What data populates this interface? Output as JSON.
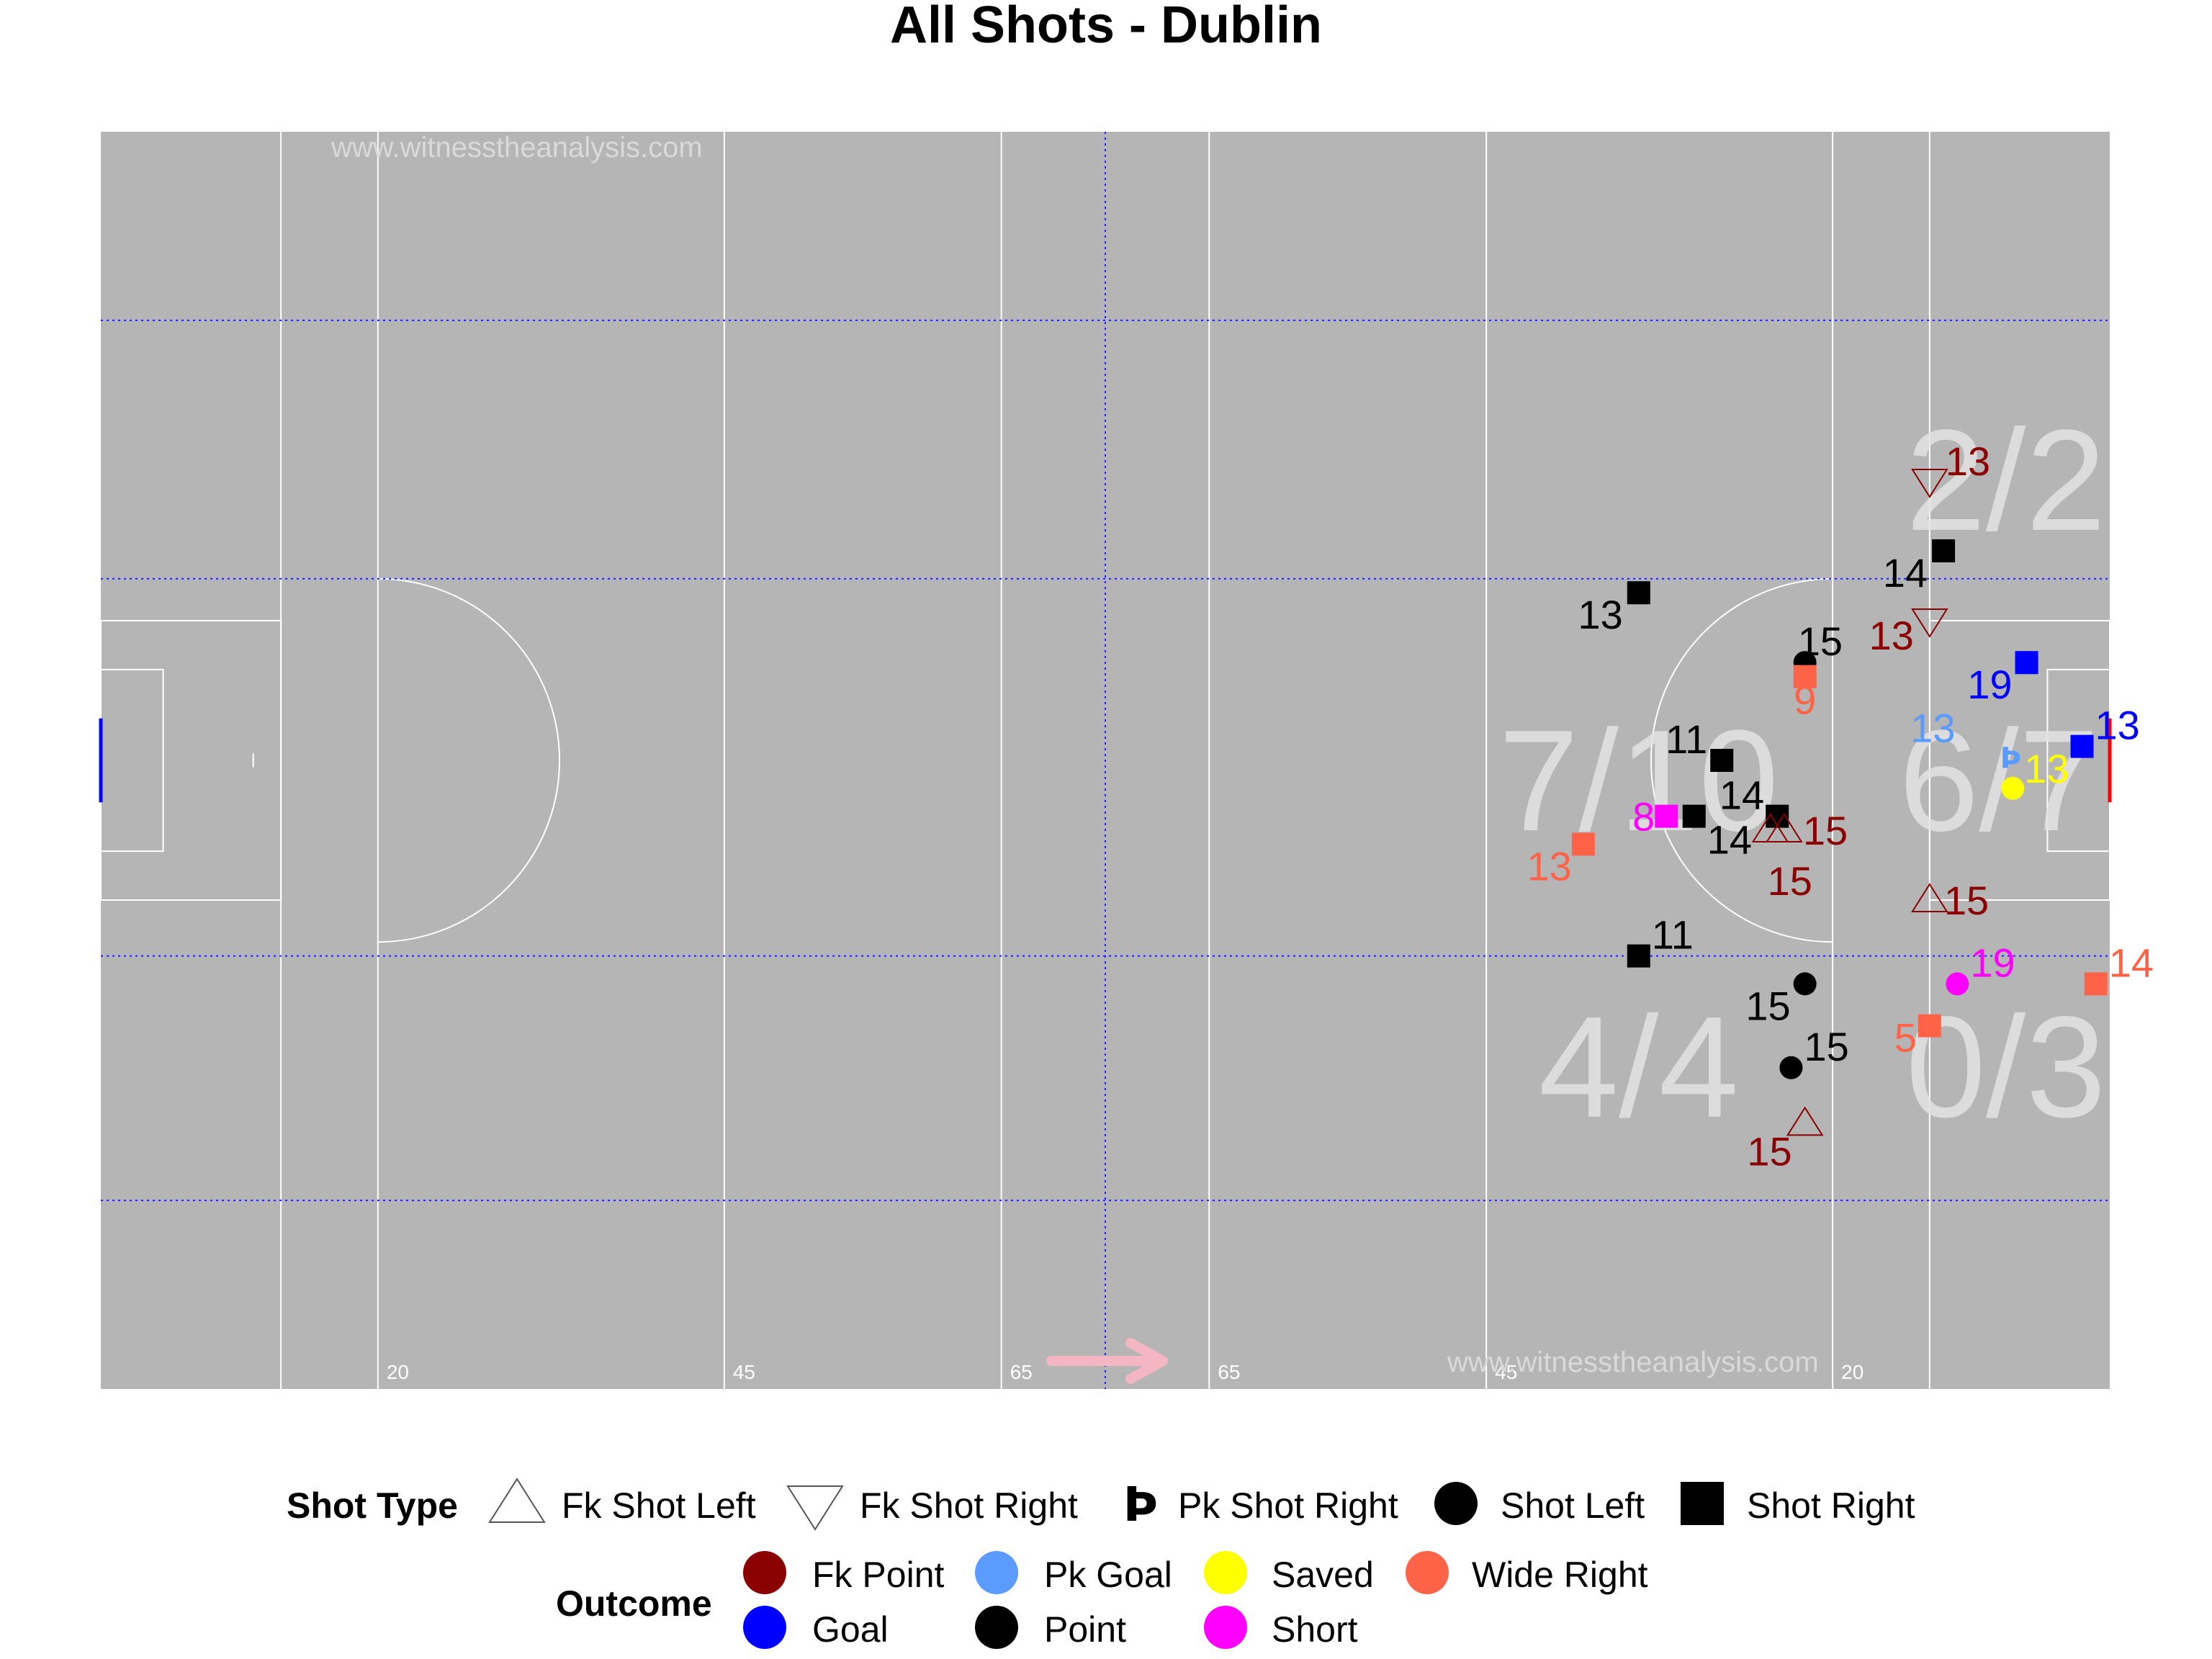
{
  "title": "All Shots - Dublin",
  "watermarks": [
    "www.witnesstheanalysis.com",
    "www.witnesstheanalysis.com"
  ],
  "yard_labels": [
    "20",
    "45",
    "65",
    "65",
    "45",
    "20"
  ],
  "zone_stats": {
    "top_right": "2/2",
    "middle_left": "7/10",
    "middle_right": "6/7",
    "bottom_left": "4/4",
    "bottom_right": "0/3"
  },
  "legend": {
    "shot_type_title": "Shot Type",
    "shot_types": [
      {
        "label": "Fk Shot Left",
        "shape": "triangle-up"
      },
      {
        "label": "Fk Shot Right",
        "shape": "triangle-down"
      },
      {
        "label": "Pk Shot Right",
        "shape": "thorn"
      },
      {
        "label": "Shot Left",
        "shape": "circle"
      },
      {
        "label": "Shot Right",
        "shape": "square"
      }
    ],
    "outcome_title": "Outcome",
    "outcomes": [
      {
        "label": "Fk Point",
        "color": "#8B0000"
      },
      {
        "label": "Goal",
        "color": "#0000FF"
      },
      {
        "label": "Pk Goal",
        "color": "#5B9BFF"
      },
      {
        "label": "Point",
        "color": "#000000"
      },
      {
        "label": "Saved",
        "color": "#FFFF00"
      },
      {
        "label": "Short",
        "color": "#FF00FF"
      },
      {
        "label": "Wide Right",
        "color": "#FF6347"
      }
    ]
  },
  "chart_data": {
    "type": "scatter",
    "title": "All Shots - Dublin",
    "x_axis": "pitch length in metres (0-145, attacking right)",
    "y_axis": "pitch width in metres (0-90)",
    "xlim": [
      0,
      145
    ],
    "ylim": [
      0,
      90
    ],
    "points": [
      {
        "x": 132,
        "y": 65,
        "type": "Fk Shot Right",
        "outcome": "Fk Point",
        "label": "13"
      },
      {
        "x": 132,
        "y": 55,
        "type": "Fk Shot Right",
        "outcome": "Fk Point",
        "label": "13"
      },
      {
        "x": 133,
        "y": 60,
        "type": "Shot Right",
        "outcome": "Point",
        "label": "14"
      },
      {
        "x": 111,
        "y": 57,
        "type": "Shot Right",
        "outcome": "Point",
        "label": "13"
      },
      {
        "x": 123,
        "y": 52,
        "type": "Shot Left",
        "outcome": "Point",
        "label": "15"
      },
      {
        "x": 123,
        "y": 51,
        "type": "Shot Right",
        "outcome": "Wide Right",
        "label": "9"
      },
      {
        "x": 139,
        "y": 52,
        "type": "Shot Right",
        "outcome": "Goal",
        "label": "19"
      },
      {
        "x": 135,
        "y": 46,
        "type": "Pk Shot Right",
        "outcome": "Pk Goal",
        "label": "13"
      },
      {
        "x": 143,
        "y": 46,
        "type": "Shot Right",
        "outcome": "Goal",
        "label": "13"
      },
      {
        "x": 138,
        "y": 43,
        "type": "Shot Left",
        "outcome": "Saved",
        "label": "13"
      },
      {
        "x": 117,
        "y": 45,
        "type": "Shot Right",
        "outcome": "Point",
        "label": "11"
      },
      {
        "x": 113,
        "y": 41,
        "type": "Shot Right",
        "outcome": "Short",
        "label": "8"
      },
      {
        "x": 115,
        "y": 41,
        "type": "Shot Right",
        "outcome": "Point",
        "label": "14"
      },
      {
        "x": 121,
        "y": 41,
        "type": "Shot Right",
        "outcome": "Point",
        "label": "14"
      },
      {
        "x": 121.5,
        "y": 40,
        "type": "Fk Shot Left",
        "outcome": "Fk Point",
        "label": "15"
      },
      {
        "x": 120.5,
        "y": 40,
        "type": "Fk Shot Left",
        "outcome": "Fk Point",
        "label": "15"
      },
      {
        "x": 107,
        "y": 39,
        "type": "Shot Right",
        "outcome": "Wide Right",
        "label": "13"
      },
      {
        "x": 132,
        "y": 35,
        "type": "Fk Shot Left",
        "outcome": "Fk Point",
        "label": "15"
      },
      {
        "x": 111,
        "y": 31,
        "type": "Shot Right",
        "outcome": "Point",
        "label": "11"
      },
      {
        "x": 123,
        "y": 29,
        "type": "Shot Left",
        "outcome": "Point",
        "label": "15"
      },
      {
        "x": 134,
        "y": 29,
        "type": "Shot Left",
        "outcome": "Short",
        "label": "19"
      },
      {
        "x": 144,
        "y": 29,
        "type": "Shot Right",
        "outcome": "Wide Right",
        "label": "14"
      },
      {
        "x": 132,
        "y": 26,
        "type": "Shot Right",
        "outcome": "Wide Right",
        "label": "5"
      },
      {
        "x": 122,
        "y": 23,
        "type": "Shot Left",
        "outcome": "Point",
        "label": "15"
      },
      {
        "x": 123,
        "y": 19,
        "type": "Fk Shot Left",
        "outcome": "Fk Point",
        "label": "15"
      }
    ]
  }
}
